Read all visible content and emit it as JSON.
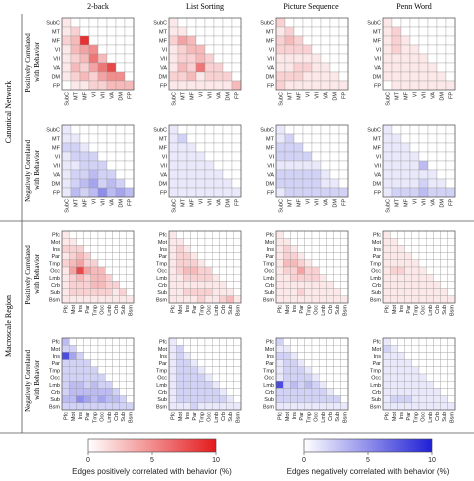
{
  "colors": {
    "positive_max": "#e41a1c",
    "negative_max": "#1f1fd6",
    "grid": "#9a9a9a",
    "frame": "#555555"
  },
  "column_titles": [
    "2-back",
    "List Sorting",
    "Picture Sequence",
    "Penn Word"
  ],
  "sections": [
    {
      "label": "Canonical Network"
    },
    {
      "label": "Macroscale Region"
    }
  ],
  "row_labels": [
    "Positively Correlated with Behavior",
    "Negatively Correlated with Behavior",
    "Positively Correlated with Behavior",
    "Negatively Correlated with Behavior"
  ],
  "colorbars": [
    {
      "ticks": [
        "0",
        "5",
        "10"
      ],
      "label": "Edges positively correlated with behavior (%)"
    },
    {
      "ticks": [
        "0",
        "5",
        "10"
      ],
      "label": "Edges negatively correlated with behavior (%)"
    }
  ],
  "chart_data": {
    "type": "heatmap",
    "matrix_form": "lower-triangular",
    "value_range": [
      0,
      10
    ],
    "unit": "%",
    "canonical_network_labels": [
      "SubC",
      "MT",
      "MF",
      "VI",
      "VII",
      "VA",
      "DM",
      "FP"
    ],
    "macroscale_region_labels": [
      "Pfc",
      "Mot",
      "Ins",
      "Par",
      "Tmp",
      "Occ",
      "Lmb",
      "Crb",
      "Sub",
      "Bsm"
    ],
    "panels": [
      {
        "section": "Canonical Network",
        "sign": "positive",
        "task": "2-back",
        "values": [
          [
            1
          ],
          [
            1,
            2
          ],
          [
            2,
            3,
            9
          ],
          [
            1,
            3,
            4,
            5
          ],
          [
            1,
            2,
            3,
            6,
            3
          ],
          [
            1,
            3,
            2,
            4,
            6,
            8
          ],
          [
            1,
            2,
            3,
            2,
            4,
            5,
            5
          ],
          [
            0,
            1,
            1,
            2,
            2,
            3,
            3,
            3
          ]
        ]
      },
      {
        "section": "Canonical Network",
        "sign": "positive",
        "task": "List Sorting",
        "values": [
          [
            1
          ],
          [
            1,
            1
          ],
          [
            2,
            4,
            3
          ],
          [
            1,
            2,
            3,
            3
          ],
          [
            1,
            2,
            2,
            3,
            2
          ],
          [
            1,
            3,
            2,
            6,
            2,
            2
          ],
          [
            2,
            2,
            3,
            1,
            2,
            2,
            2
          ],
          [
            1,
            1,
            1,
            1,
            1,
            1,
            1,
            3
          ]
        ]
      },
      {
        "section": "Canonical Network",
        "sign": "positive",
        "task": "Picture Sequence",
        "values": [
          [
            2
          ],
          [
            1,
            2
          ],
          [
            2,
            3,
            2
          ],
          [
            2,
            2,
            2,
            2
          ],
          [
            1,
            1,
            1,
            1,
            1
          ],
          [
            1,
            1,
            2,
            2,
            1,
            1
          ],
          [
            2,
            2,
            2,
            1,
            1,
            1,
            1
          ],
          [
            2,
            1,
            1,
            1,
            1,
            1,
            1,
            1
          ]
        ]
      },
      {
        "section": "Canonical Network",
        "sign": "positive",
        "task": "Penn Word",
        "values": [
          [
            1
          ],
          [
            1,
            2
          ],
          [
            1,
            2,
            1
          ],
          [
            1,
            2,
            1,
            1
          ],
          [
            1,
            1,
            1,
            1,
            1
          ],
          [
            1,
            1,
            1,
            1,
            1,
            1
          ],
          [
            1,
            1,
            1,
            1,
            1,
            1,
            1
          ],
          [
            0,
            1,
            1,
            1,
            1,
            1,
            1,
            1
          ]
        ]
      },
      {
        "section": "Canonical Network",
        "sign": "negative",
        "task": "2-back",
        "values": [
          [
            1
          ],
          [
            1,
            1
          ],
          [
            2,
            2,
            1
          ],
          [
            1,
            2,
            2,
            2
          ],
          [
            1,
            1,
            2,
            2,
            2
          ],
          [
            1,
            2,
            2,
            3,
            2,
            2
          ],
          [
            1,
            2,
            3,
            4,
            2,
            3,
            2
          ],
          [
            1,
            3,
            2,
            3,
            5,
            3,
            4,
            3
          ]
        ]
      },
      {
        "section": "Canonical Network",
        "sign": "negative",
        "task": "List Sorting",
        "values": [
          [
            1
          ],
          [
            1,
            2
          ],
          [
            1,
            1,
            1
          ],
          [
            1,
            1,
            1,
            1
          ],
          [
            1,
            1,
            1,
            1,
            1
          ],
          [
            1,
            1,
            1,
            1,
            1,
            1
          ],
          [
            1,
            1,
            1,
            1,
            1,
            1,
            1
          ],
          [
            1,
            1,
            1,
            1,
            1,
            1,
            1,
            1
          ]
        ]
      },
      {
        "section": "Canonical Network",
        "sign": "negative",
        "task": "Picture Sequence",
        "values": [
          [
            1
          ],
          [
            1,
            2
          ],
          [
            2,
            2,
            2
          ],
          [
            2,
            2,
            2,
            2
          ],
          [
            1,
            1,
            1,
            1,
            1
          ],
          [
            2,
            2,
            2,
            2,
            2,
            1
          ],
          [
            2,
            2,
            2,
            2,
            2,
            1,
            1
          ],
          [
            1,
            2,
            2,
            2,
            2,
            2,
            2,
            2
          ]
        ]
      },
      {
        "section": "Canonical Network",
        "sign": "negative",
        "task": "Penn Word",
        "values": [
          [
            1
          ],
          [
            1,
            1
          ],
          [
            1,
            1,
            1
          ],
          [
            1,
            1,
            1,
            1
          ],
          [
            1,
            1,
            1,
            1,
            3
          ],
          [
            1,
            1,
            1,
            1,
            1,
            1
          ],
          [
            1,
            1,
            1,
            1,
            2,
            1,
            1
          ],
          [
            1,
            2,
            2,
            2,
            3,
            2,
            2,
            2
          ]
        ]
      },
      {
        "section": "Macroscale Region",
        "sign": "positive",
        "task": "2-back",
        "values": [
          [
            1
          ],
          [
            1,
            1
          ],
          [
            2,
            2,
            2
          ],
          [
            1,
            2,
            3,
            2
          ],
          [
            2,
            3,
            4,
            2,
            2
          ],
          [
            1,
            4,
            8,
            4,
            3,
            3
          ],
          [
            1,
            2,
            3,
            2,
            3,
            3,
            2
          ],
          [
            1,
            2,
            2,
            2,
            3,
            3,
            2,
            2
          ],
          [
            1,
            2,
            2,
            2,
            2,
            2,
            2,
            1,
            2
          ],
          [
            1,
            1,
            1,
            1,
            1,
            1,
            1,
            1,
            1,
            1
          ]
        ]
      },
      {
        "section": "Macroscale Region",
        "sign": "positive",
        "task": "List Sorting",
        "values": [
          [
            1
          ],
          [
            1,
            1
          ],
          [
            1,
            2,
            1
          ],
          [
            1,
            2,
            2,
            1
          ],
          [
            1,
            2,
            2,
            2,
            1
          ],
          [
            1,
            2,
            3,
            3,
            2,
            2
          ],
          [
            1,
            1,
            2,
            2,
            2,
            2,
            1
          ],
          [
            1,
            1,
            1,
            1,
            1,
            1,
            1,
            1
          ],
          [
            1,
            1,
            2,
            2,
            2,
            2,
            1,
            1,
            1
          ],
          [
            1,
            1,
            1,
            1,
            2,
            1,
            1,
            2,
            3,
            1
          ]
        ]
      },
      {
        "section": "Macroscale Region",
        "sign": "positive",
        "task": "Picture Sequence",
        "values": [
          [
            1
          ],
          [
            1,
            1
          ],
          [
            1,
            2,
            1
          ],
          [
            1,
            2,
            2,
            1
          ],
          [
            1,
            3,
            3,
            2,
            1
          ],
          [
            1,
            2,
            2,
            4,
            2,
            2
          ],
          [
            1,
            1,
            2,
            2,
            2,
            2,
            1
          ],
          [
            1,
            1,
            1,
            1,
            1,
            1,
            1,
            1
          ],
          [
            1,
            1,
            1,
            2,
            1,
            1,
            1,
            1,
            1
          ],
          [
            1,
            1,
            1,
            1,
            1,
            1,
            1,
            1,
            1,
            1
          ]
        ]
      },
      {
        "section": "Macroscale Region",
        "sign": "positive",
        "task": "Penn Word",
        "values": [
          [
            1
          ],
          [
            1,
            1
          ],
          [
            1,
            1,
            1
          ],
          [
            1,
            1,
            1,
            1
          ],
          [
            1,
            1,
            1,
            1,
            1
          ],
          [
            1,
            2,
            2,
            1,
            1,
            1
          ],
          [
            1,
            1,
            1,
            1,
            1,
            1,
            1
          ],
          [
            1,
            1,
            1,
            1,
            1,
            1,
            1,
            1
          ],
          [
            1,
            1,
            1,
            1,
            1,
            1,
            1,
            1,
            1
          ],
          [
            1,
            1,
            1,
            1,
            1,
            1,
            1,
            1,
            1,
            1
          ]
        ]
      },
      {
        "section": "Macroscale Region",
        "sign": "negative",
        "task": "2-back",
        "values": [
          [
            3
          ],
          [
            2,
            2
          ],
          [
            8,
            4,
            2
          ],
          [
            2,
            2,
            2,
            2
          ],
          [
            2,
            2,
            2,
            2,
            2
          ],
          [
            2,
            2,
            2,
            2,
            2,
            2
          ],
          [
            2,
            3,
            3,
            2,
            3,
            2,
            2
          ],
          [
            2,
            3,
            3,
            3,
            3,
            3,
            3,
            2
          ],
          [
            3,
            3,
            5,
            4,
            3,
            4,
            3,
            3,
            2
          ],
          [
            2,
            2,
            2,
            2,
            2,
            2,
            2,
            2,
            2,
            2
          ]
        ]
      },
      {
        "section": "Macroscale Region",
        "sign": "negative",
        "task": "List Sorting",
        "values": [
          [
            1
          ],
          [
            1,
            2
          ],
          [
            1,
            2,
            1
          ],
          [
            1,
            2,
            2,
            1
          ],
          [
            1,
            2,
            2,
            2,
            1
          ],
          [
            1,
            2,
            2,
            2,
            2,
            1
          ],
          [
            1,
            2,
            2,
            2,
            2,
            2,
            1
          ],
          [
            1,
            2,
            2,
            2,
            2,
            2,
            2,
            1
          ],
          [
            1,
            2,
            2,
            2,
            2,
            2,
            2,
            2,
            1
          ],
          [
            1,
            1,
            1,
            2,
            1,
            1,
            1,
            1,
            1,
            1
          ]
        ]
      },
      {
        "section": "Macroscale Region",
        "sign": "negative",
        "task": "Picture Sequence",
        "values": [
          [
            2
          ],
          [
            1,
            1
          ],
          [
            2,
            2,
            1
          ],
          [
            1,
            2,
            2,
            1
          ],
          [
            1,
            2,
            2,
            2,
            1
          ],
          [
            1,
            2,
            2,
            2,
            2,
            1
          ],
          [
            8,
            2,
            3,
            2,
            3,
            2,
            1
          ],
          [
            2,
            2,
            2,
            2,
            2,
            2,
            2,
            1
          ],
          [
            2,
            2,
            2,
            2,
            2,
            2,
            2,
            2,
            2
          ],
          [
            1,
            1,
            1,
            1,
            1,
            1,
            1,
            1,
            1,
            1
          ]
        ]
      },
      {
        "section": "Macroscale Region",
        "sign": "negative",
        "task": "Penn Word",
        "values": [
          [
            1
          ],
          [
            2,
            1
          ],
          [
            1,
            1,
            1
          ],
          [
            1,
            1,
            1,
            1
          ],
          [
            1,
            1,
            1,
            1,
            1
          ],
          [
            1,
            1,
            1,
            1,
            1,
            1
          ],
          [
            1,
            1,
            1,
            1,
            1,
            1,
            1
          ],
          [
            1,
            1,
            1,
            1,
            1,
            1,
            1,
            1
          ],
          [
            1,
            2,
            2,
            2,
            1,
            1,
            1,
            1,
            1
          ],
          [
            1,
            1,
            1,
            1,
            1,
            1,
            1,
            1,
            1,
            1
          ]
        ]
      }
    ]
  }
}
